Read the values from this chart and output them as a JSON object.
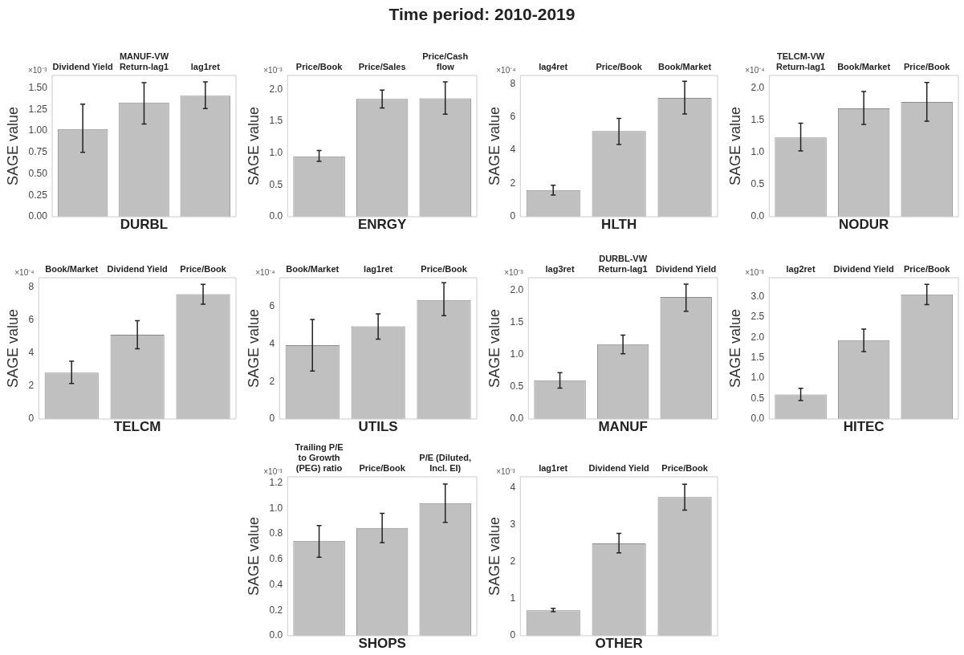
{
  "chart_data": [
    {
      "type": "other",
      "title": "Time period: 2010-2019"
    },
    {
      "type": "bar",
      "xlabel": "DURBL",
      "ylabel": "SAGE value",
      "annotations": [
        "×10⁻³"
      ],
      "categories": [
        "Dividend Yield",
        "MANUF-VW Return-lag1",
        "lag1ret"
      ],
      "values": [
        1.02,
        1.33,
        1.41
      ],
      "errors": [
        [
          0.75,
          1.31
        ],
        [
          1.08,
          1.56
        ],
        [
          1.26,
          1.57
        ]
      ],
      "color": "#c0c0c0",
      "ylim": [
        0,
        1.645
      ],
      "yticks": [
        {
          "value": 0,
          "label": "0.00"
        },
        {
          "value": 0.25,
          "label": "0.25"
        },
        {
          "value": 0.5,
          "label": "0.50"
        },
        {
          "value": 0.75,
          "label": "0.75"
        },
        {
          "value": 1,
          "label": "1.00"
        },
        {
          "value": 1.25,
          "label": "1.25"
        },
        {
          "value": 1.5,
          "label": "1.50"
        }
      ],
      "grid": false
    },
    {
      "type": "bar",
      "xlabel": "ENRGY",
      "ylabel": "SAGE value",
      "annotations": [
        "×10⁻³"
      ],
      "categories": [
        "Price/Book",
        "Price/Sales",
        "Price/Cash flow"
      ],
      "values": [
        0.95,
        1.85,
        1.86
      ],
      "errors": [
        [
          0.87,
          1.04
        ],
        [
          1.71,
          1.99
        ],
        [
          1.61,
          2.12
        ]
      ],
      "color": "#c0c0c0",
      "ylim": [
        0,
        2.22
      ],
      "yticks": [
        {
          "value": 0,
          "label": "0.0"
        },
        {
          "value": 0.5,
          "label": "0.5"
        },
        {
          "value": 1,
          "label": "1.0"
        },
        {
          "value": 1.5,
          "label": "1.5"
        },
        {
          "value": 2,
          "label": "2.0"
        }
      ],
      "grid": false
    },
    {
      "type": "bar",
      "xlabel": "HLTH",
      "ylabel": "SAGE value",
      "annotations": [
        "×10⁻⁴"
      ],
      "categories": [
        "lag4ret",
        "Price/Book",
        "Book/Market"
      ],
      "values": [
        1.6,
        5.15,
        7.15
      ],
      "errors": [
        [
          1.3,
          1.9
        ],
        [
          4.35,
          5.92
        ],
        [
          6.18,
          8.15
        ]
      ],
      "color": "#c0c0c0",
      "ylim": [
        0,
        8.5
      ],
      "yticks": [
        0,
        2,
        4,
        6,
        8
      ],
      "grid": false
    },
    {
      "type": "bar",
      "xlabel": "NODUR",
      "ylabel": "SAGE value",
      "annotations": [
        "×10⁻⁴"
      ],
      "categories": [
        "TELCM-VW Return-lag1",
        "Book/Market",
        "Price/Book"
      ],
      "values": [
        1.23,
        1.68,
        1.78
      ],
      "errors": [
        [
          1.02,
          1.45
        ],
        [
          1.43,
          1.94
        ],
        [
          1.48,
          2.08
        ]
      ],
      "color": "#c0c0c0",
      "ylim": [
        0,
        2.19
      ],
      "yticks": [
        {
          "value": 0,
          "label": "0.0"
        },
        {
          "value": 0.5,
          "label": "0.5"
        },
        {
          "value": 1,
          "label": "1.0"
        },
        {
          "value": 1.5,
          "label": "1.5"
        },
        {
          "value": 2,
          "label": "2.0"
        }
      ],
      "grid": false
    },
    {
      "type": "bar",
      "xlabel": "TELCM",
      "ylabel": "SAGE value",
      "annotations": [
        "×10⁻⁴"
      ],
      "categories": [
        "Book/Market",
        "Dividend Yield",
        "Price/Book"
      ],
      "values": [
        2.8,
        5.1,
        7.55
      ],
      "errors": [
        [
          2.15,
          3.5
        ],
        [
          4.25,
          5.95
        ],
        [
          6.95,
          8.15
        ]
      ],
      "color": "#c0c0c0",
      "ylim": [
        0,
        8.55
      ],
      "yticks": [
        0,
        2,
        4,
        6,
        8
      ],
      "grid": false
    },
    {
      "type": "bar",
      "xlabel": "UTILS",
      "ylabel": "SAGE value",
      "annotations": [
        "×10⁻⁴"
      ],
      "categories": [
        "Book/Market",
        "lag1ret",
        "Price/Book"
      ],
      "values": [
        3.93,
        4.93,
        6.33
      ],
      "errors": [
        [
          2.55,
          5.3
        ],
        [
          4.25,
          5.6
        ],
        [
          5.5,
          7.25
        ]
      ],
      "color": "#c0c0c0",
      "ylim": [
        0,
        7.52
      ],
      "yticks": [
        0,
        2,
        4,
        6
      ],
      "grid": false
    },
    {
      "type": "bar",
      "xlabel": "MANUF",
      "ylabel": "SAGE value",
      "annotations": [
        "×10⁻³"
      ],
      "categories": [
        "lag3ret",
        "DURBL-VW Return-lag1",
        "Dividend Yield"
      ],
      "values": [
        0.6,
        1.16,
        1.89
      ],
      "errors": [
        [
          0.48,
          0.72
        ],
        [
          1.01,
          1.3
        ],
        [
          1.67,
          2.09
        ]
      ],
      "color": "#c0c0c0",
      "ylim": [
        0,
        2.19
      ],
      "yticks": [
        {
          "value": 0,
          "label": "0.0"
        },
        {
          "value": 0.5,
          "label": "0.5"
        },
        {
          "value": 1,
          "label": "1.0"
        },
        {
          "value": 1.5,
          "label": "1.5"
        },
        {
          "value": 2,
          "label": "2.0"
        }
      ],
      "grid": false
    },
    {
      "type": "bar",
      "xlabel": "HITEC",
      "ylabel": "SAGE value",
      "annotations": [
        "×10⁻³"
      ],
      "categories": [
        "lag2ret",
        "Dividend Yield",
        "Price/Book"
      ],
      "values": [
        0.6,
        1.93,
        3.05
      ],
      "errors": [
        [
          0.45,
          0.75
        ],
        [
          1.65,
          2.2
        ],
        [
          2.8,
          3.3
        ]
      ],
      "color": "#c0c0c0",
      "ylim": [
        0,
        3.46
      ],
      "yticks": [
        {
          "value": 0,
          "label": "0.0"
        },
        {
          "value": 0.5,
          "label": "0.5"
        },
        {
          "value": 1,
          "label": "1.0"
        },
        {
          "value": 1.5,
          "label": "1.5"
        },
        {
          "value": 2,
          "label": "2.0"
        },
        {
          "value": 2.5,
          "label": "2.5"
        },
        {
          "value": 3,
          "label": "3.0"
        }
      ],
      "grid": false
    },
    {
      "type": "bar",
      "xlabel": "SHOPS",
      "ylabel": "SAGE value",
      "annotations": [
        "×10⁻³"
      ],
      "categories": [
        "Trailing P/E to Growth (PEG) ratio",
        "Price/Book",
        "P/E (Diluted, Incl. EI)"
      ],
      "values": [
        0.745,
        0.845,
        1.04
      ],
      "errors": [
        [
          0.615,
          0.865
        ],
        [
          0.73,
          0.96
        ],
        [
          0.89,
          1.19
        ]
      ],
      "color": "#c0c0c0",
      "ylim": [
        0,
        1.247
      ],
      "yticks": [
        {
          "value": 0,
          "label": "0.0"
        },
        {
          "value": 0.2,
          "label": "0.2"
        },
        {
          "value": 0.4,
          "label": "0.4"
        },
        {
          "value": 0.6,
          "label": "0.6"
        },
        {
          "value": 0.8,
          "label": "0.8"
        },
        {
          "value": 1,
          "label": "1.0"
        },
        {
          "value": 1.2,
          "label": "1.2"
        }
      ],
      "grid": false
    },
    {
      "type": "bar",
      "xlabel": "OTHER",
      "ylabel": "SAGE value",
      "annotations": [
        "×10⁻³"
      ],
      "categories": [
        "lag1ret",
        "Dividend Yield",
        "Price/Book"
      ],
      "values": [
        0.69,
        2.5,
        3.75
      ],
      "errors": [
        [
          0.65,
          0.74
        ],
        [
          2.24,
          2.77
        ],
        [
          3.4,
          4.1
        ]
      ],
      "color": "#c0c0c0",
      "ylim": [
        0,
        4.3
      ],
      "yticks": [
        0,
        1,
        2,
        3,
        4
      ],
      "grid": false
    }
  ]
}
